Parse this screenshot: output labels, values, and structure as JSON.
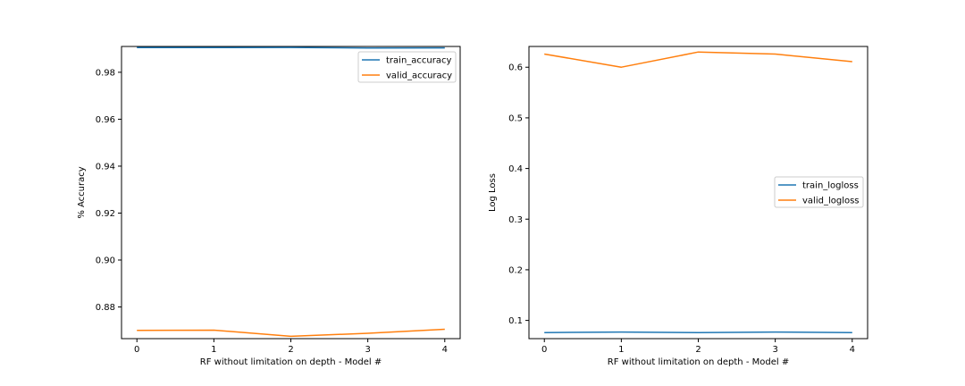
{
  "chart_data": [
    {
      "type": "line",
      "title": "",
      "xlabel": "RF without limitation on depth - Model #",
      "ylabel": "% Accuracy",
      "x": [
        0,
        1,
        2,
        3,
        4
      ],
      "xticks": [
        "0",
        "1",
        "2",
        "3",
        "4"
      ],
      "yticks": [
        "0.88",
        "0.90",
        "0.92",
        "0.94",
        "0.96",
        "0.98"
      ],
      "xlim": [
        -0.2,
        4.2
      ],
      "ylim": [
        0.8665,
        0.991
      ],
      "grid": false,
      "legend_position": "upper right",
      "series": [
        {
          "name": "train_accuracy",
          "color": "#1f77b4",
          "values": [
            0.9905,
            0.9905,
            0.9906,
            0.9903,
            0.9904
          ]
        },
        {
          "name": "valid_accuracy",
          "color": "#ff7f0e",
          "values": [
            0.87,
            0.8701,
            0.8675,
            0.8688,
            0.8705
          ]
        }
      ]
    },
    {
      "type": "line",
      "title": "",
      "xlabel": "RF without limitation on depth - Model #",
      "ylabel": "Log Loss",
      "x": [
        0,
        1,
        2,
        3,
        4
      ],
      "xticks": [
        "0",
        "1",
        "2",
        "3",
        "4"
      ],
      "yticks": [
        "0.1",
        "0.2",
        "0.3",
        "0.4",
        "0.5",
        "0.6"
      ],
      "xlim": [
        -0.2,
        4.2
      ],
      "ylim": [
        0.064,
        0.641
      ],
      "grid": false,
      "legend_position": "center right",
      "series": [
        {
          "name": "train_logloss",
          "color": "#1f77b4",
          "values": [
            0.076,
            0.077,
            0.076,
            0.077,
            0.076
          ]
        },
        {
          "name": "valid_logloss",
          "color": "#ff7f0e",
          "values": [
            0.626,
            0.6,
            0.63,
            0.626,
            0.611
          ]
        }
      ]
    }
  ]
}
